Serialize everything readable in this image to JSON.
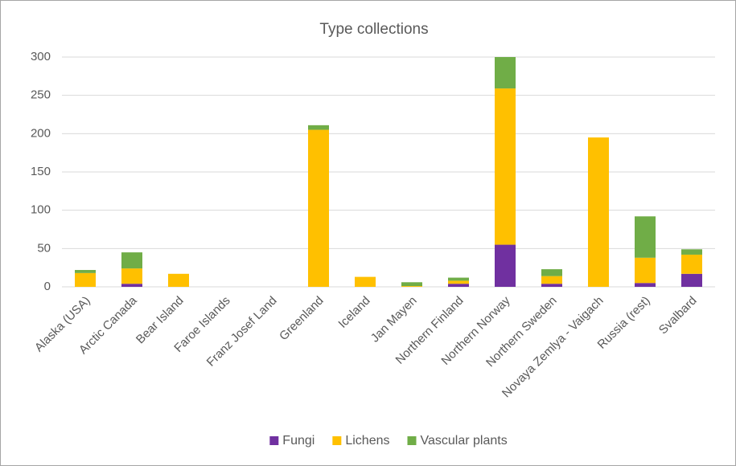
{
  "chart_data": {
    "type": "stacked_bar",
    "title": "Type collections",
    "categories": [
      "Alaska (USA)",
      "Arctic Canada",
      "Bear Island",
      "Faroe Islands",
      "Franz Josef Land",
      "Greenland",
      "Iceland",
      "Jan Mayen",
      "Northern Finland",
      "Northern Norway",
      "Northern Sweden",
      "Novaya Zemlya - Vaigach",
      "Russia (rest)",
      "Svalbard"
    ],
    "series": [
      {
        "name": "Fungi",
        "color": "#7030a0",
        "values": [
          0,
          4,
          0,
          0,
          0,
          0,
          0,
          0,
          4,
          55,
          4,
          0,
          5,
          17
        ]
      },
      {
        "name": "Lichens",
        "color": "#ffc000",
        "values": [
          18,
          20,
          17,
          0,
          0,
          205,
          13,
          1,
          4,
          204,
          10,
          195,
          33,
          25
        ]
      },
      {
        "name": "Vascular plants",
        "color": "#70ad47",
        "values": [
          4,
          21,
          0,
          0,
          0,
          6,
          0,
          5,
          4,
          41,
          9,
          0,
          54,
          7
        ]
      }
    ],
    "ylim": [
      0,
      300
    ],
    "yticks": [
      0,
      50,
      100,
      150,
      200,
      250,
      300
    ],
    "grid": true,
    "legend": "bottom"
  }
}
